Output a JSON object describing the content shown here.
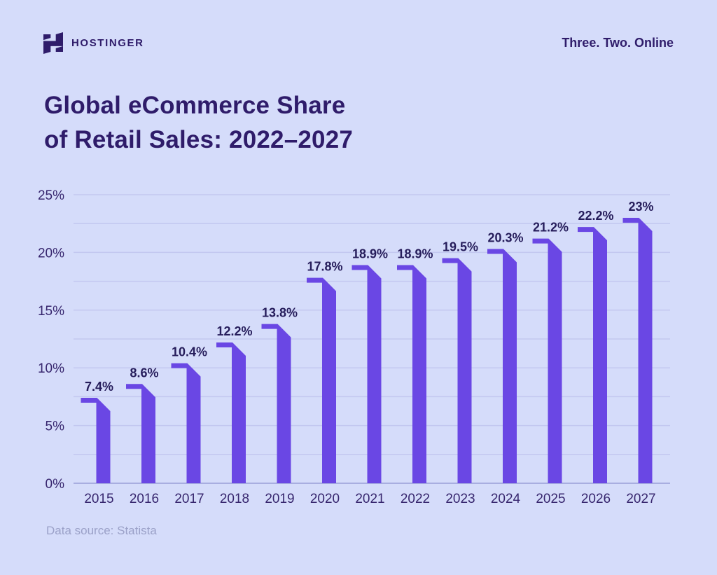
{
  "header": {
    "brand": "HOSTINGER",
    "tagline": "Three. Two. Online"
  },
  "icons": {
    "brand": "hostinger-h-logo"
  },
  "title": {
    "line1": "Global eCommerce Share",
    "line2": "of Retail Sales: 2022–2027"
  },
  "chart_data": {
    "type": "bar",
    "title": "Global eCommerce Share of Retail Sales: 2022–2027",
    "categories": [
      "2015",
      "2016",
      "2017",
      "2018",
      "2019",
      "2020",
      "2021",
      "2022",
      "2023",
      "2024",
      "2025",
      "2026",
      "2027"
    ],
    "values": [
      7.4,
      8.6,
      10.4,
      12.2,
      13.8,
      17.8,
      18.9,
      18.9,
      19.5,
      20.3,
      21.2,
      22.2,
      23
    ],
    "labels": [
      "7.4%",
      "8.6%",
      "10.4%",
      "12.2%",
      "13.8%",
      "17.8%",
      "18.9%",
      "18.9%",
      "19.5%",
      "20.3%",
      "21.2%",
      "22.2%",
      "23%"
    ],
    "xlabel": "",
    "ylabel": "",
    "y_ticks": [
      "0%",
      "5%",
      "10%",
      "15%",
      "20%",
      "25%"
    ],
    "ylim": [
      0,
      25
    ],
    "grid_step": 2.5,
    "grid": true,
    "legend": "none",
    "bar_color": "#6A47E4",
    "grid_color": "#C3C8F0",
    "axis_color": "#A8AEE0",
    "tick_color": "#37266E",
    "value_label_color": "#261D5B"
  },
  "footer": {
    "source": "Data source: Statista"
  },
  "colors": {
    "background": "#D5DCFA",
    "heading_text": "#2F1C6A",
    "muted_text": "#9BA1C8"
  }
}
